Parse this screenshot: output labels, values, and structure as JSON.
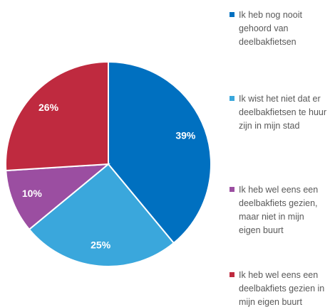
{
  "chart_data": {
    "type": "pie",
    "categories": [
      "Ik heb nog nooit gehoord van deelbakfietsen",
      "Ik wist het niet dat er deelbakfietsen te huur zijn in mijn stad",
      "Ik heb wel eens een deelbakfiets gezien, maar niet in mijn eigen buurt",
      "Ik heb wel eens een deelbakfiets gezien in mijn eigen buurt"
    ],
    "values": [
      39,
      25,
      10,
      26
    ],
    "value_labels": [
      "39%",
      "25%",
      "10%",
      "26%"
    ],
    "colors": [
      "#0070c0",
      "#3aa7dc",
      "#9b4ea1",
      "#bf2a3f"
    ],
    "legend": "right"
  }
}
